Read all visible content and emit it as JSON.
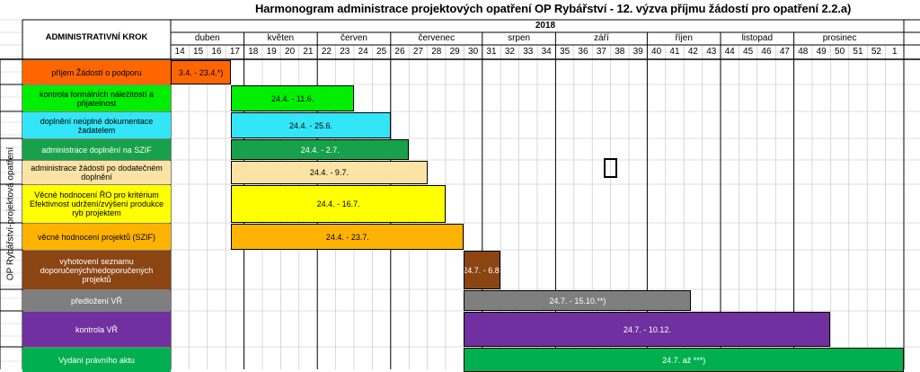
{
  "title": "Harmonogram administrace projektových opatření OP Rybářství - 12. výzva příjmu žádostí pro opatření 2.2.a)",
  "header": {
    "col_label": "ADMINISTRATIVNÍ KROK",
    "year": "2018"
  },
  "side_label": "OP Rybářství-projektová opatření",
  "colors": {
    "border": "#000000",
    "grid": "#bfbfbf"
  },
  "months": [
    {
      "label": "duben",
      "from_week": 14,
      "to_week": 17
    },
    {
      "label": "květen",
      "from_week": 18,
      "to_week": 21
    },
    {
      "label": "červen",
      "from_week": 22,
      "to_week": 25
    },
    {
      "label": "červenec",
      "from_week": 26,
      "to_week": 30
    },
    {
      "label": "srpen",
      "from_week": 31,
      "to_week": 34
    },
    {
      "label": "září",
      "from_week": 35,
      "to_week": 39
    },
    {
      "label": "říjen",
      "from_week": 40,
      "to_week": 43
    },
    {
      "label": "listopad",
      "from_week": 44,
      "to_week": 47
    },
    {
      "label": "prosinec",
      "from_week": 48,
      "to_week": 52
    }
  ],
  "weeks": [
    "14",
    "15",
    "16",
    "17",
    "18",
    "19",
    "20",
    "21",
    "22",
    "23",
    "24",
    "25",
    "26",
    "27",
    "28",
    "29",
    "30",
    "31",
    "32",
    "33",
    "34",
    "35",
    "36",
    "37",
    "38",
    "39",
    "40",
    "41",
    "42",
    "43",
    "44",
    "45",
    "46",
    "47",
    "48",
    "49",
    "50",
    "51",
    "52",
    "1"
  ],
  "tasks": [
    {
      "label": "příjem Žádostí o podporu",
      "color": "#ff6600",
      "bar_label": "3.4. - 23.4.*)",
      "start_week": 14,
      "end_week": 17.3,
      "label_color": "#ff6600"
    },
    {
      "label": "kontrola formálních náležitostí a přijatelnost",
      "color": "#00ee00",
      "bar_label": "24.4. - 11.6.",
      "start_week": 17.3,
      "end_week": 24.0,
      "label_color": "#00ee00"
    },
    {
      "label": "doplnění neúplné dokumentace žadatelem",
      "color": "#33e6f7",
      "bar_label": "24.4. - 25.6.",
      "start_week": 17.3,
      "end_week": 26.0,
      "label_color": "#33e6f7"
    },
    {
      "label": "administrace doplnění na SZIF",
      "color": "#17a14a",
      "bar_label": "24.4. - 2.7.",
      "start_week": 17.3,
      "end_week": 27.0,
      "label_color": "#17a14a"
    },
    {
      "label": "administrace žádosti po dodatečném doplnění",
      "color": "#fbe3a6",
      "bar_label": "24.4. - 9.7.",
      "start_week": 17.3,
      "end_week": 28.0,
      "label_color": "#fbe3a6"
    },
    {
      "label": "Věcné hodnocení ŘO pro kritérium Efektivnost udržení/zvýšení produkce ryb projektem",
      "color": "#ffff00",
      "bar_label": "24.4. - 16.7.",
      "start_week": 17.3,
      "end_week": 29.0,
      "label_color": "#ffff00"
    },
    {
      "label": "věcné hodnocení projektů (SZIF)",
      "color": "#ffb300",
      "bar_label": "24.4. - 23.7.",
      "start_week": 17.3,
      "end_week": 30.0,
      "label_color": "#ffb300"
    },
    {
      "label": "vyhotovení seznamu doporučených/nedoporučených projektů",
      "color": "#8b4513",
      "bar_label": "24.7. - 6.8.",
      "start_week": 30.0,
      "end_week": 32.0,
      "label_color": "#8b4513"
    },
    {
      "label": "předložení VŘ",
      "color": "#7f7f7f",
      "bar_label": "24.7. - 15.10.**)",
      "start_week": 30.0,
      "end_week": 42.4,
      "label_color": "#7f7f7f"
    },
    {
      "label": "kontrola VŘ",
      "color": "#7030a0",
      "bar_label": "24.7. - 10.12.",
      "start_week": 30.0,
      "end_week": 50.0,
      "label_color": "#7030a0"
    },
    {
      "label": "Vydání právního aktu",
      "color": "#00b050",
      "bar_label": "24.7. až ***)",
      "start_week": 30.0,
      "end_week": 54.0,
      "label_color": "#00b050"
    }
  ]
}
